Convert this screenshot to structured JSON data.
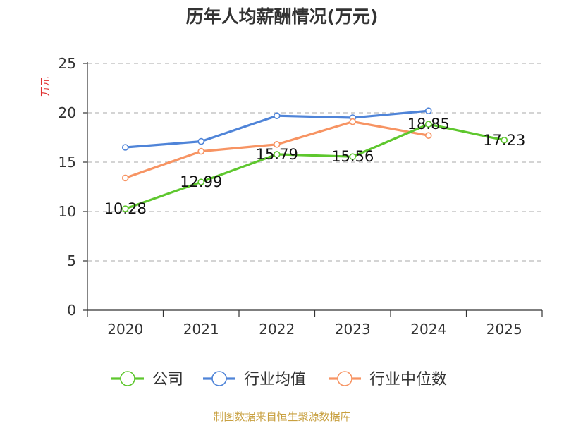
{
  "colors": {
    "title": "#333333",
    "axis": "#333333",
    "grid": "#bbbbbb",
    "ylabel": "#e03030",
    "source": "#c8a040",
    "label": "#111111"
  },
  "chart_data": {
    "type": "line",
    "title": "历年人均薪酬情况(万元)",
    "ylabel": "万元",
    "xlabel": "",
    "categories": [
      "2020",
      "2021",
      "2022",
      "2023",
      "2024",
      "2025"
    ],
    "yticks": [
      "0",
      "5",
      "10",
      "15",
      "20",
      "25"
    ],
    "ylim": [
      0,
      25
    ],
    "grid": true,
    "legend_position": "bottom",
    "series": [
      {
        "name": "公司",
        "color": "#5ec72e",
        "values": [
          10.28,
          12.99,
          15.79,
          15.56,
          18.85,
          17.23
        ],
        "labels": [
          "10.28",
          "12.99",
          "15.79",
          "15.56",
          "18.85",
          "17.23"
        ]
      },
      {
        "name": "行业均值",
        "color": "#4f84d8",
        "values": [
          16.5,
          17.1,
          19.7,
          19.5,
          20.2,
          null
        ]
      },
      {
        "name": "行业中位数",
        "color": "#f79463",
        "values": [
          13.4,
          16.1,
          16.8,
          19.1,
          17.7,
          null
        ]
      }
    ]
  },
  "source_text": "制图数据来自恒生聚源数据库"
}
